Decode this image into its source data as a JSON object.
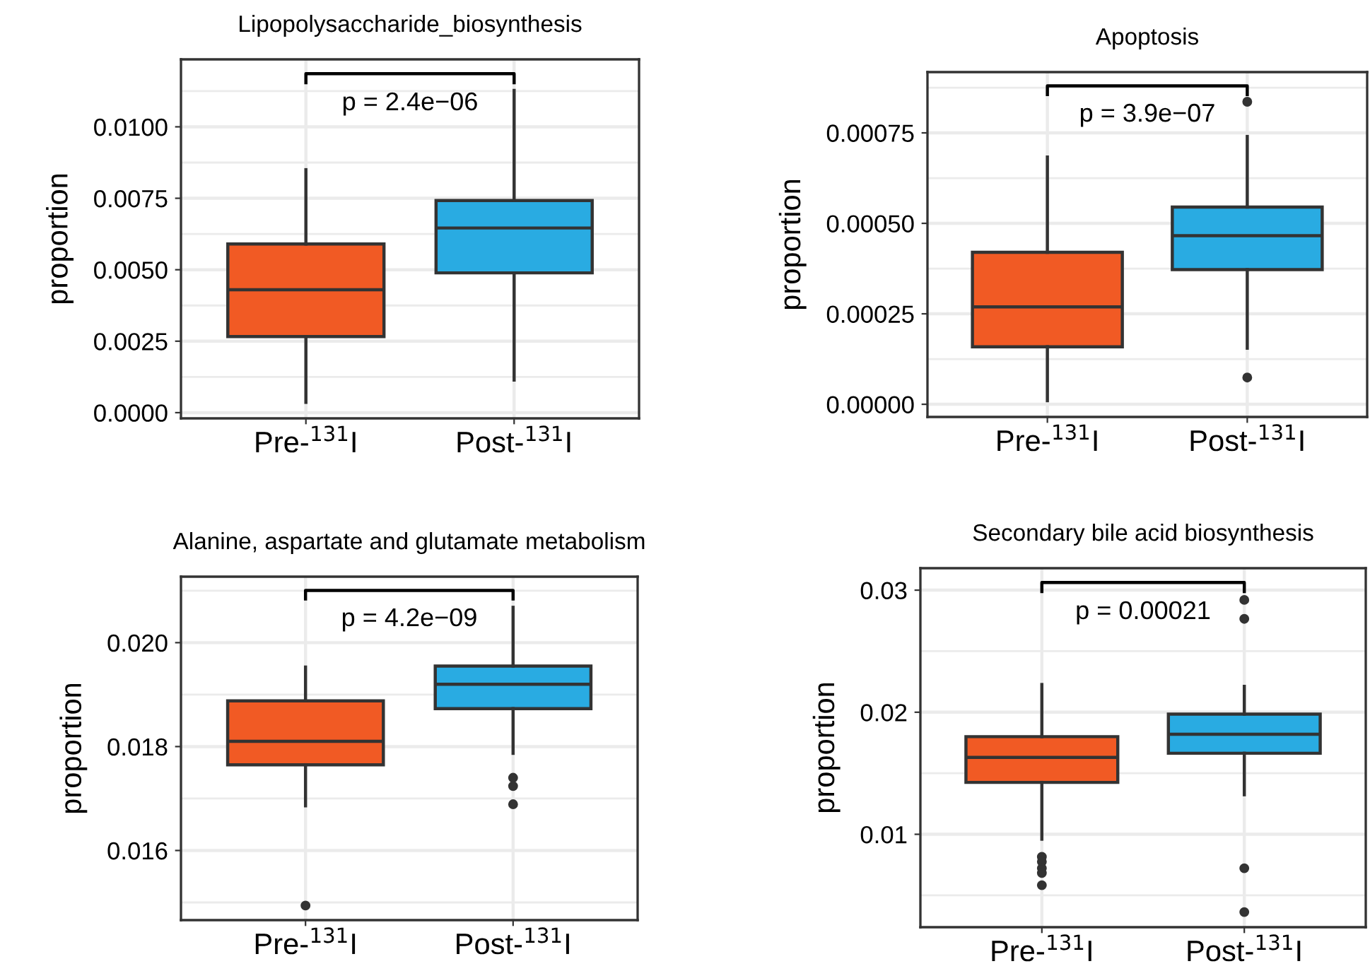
{
  "chart_data": [
    {
      "type": "box",
      "title": "Lipopolysaccharide_biosynthesis",
      "ylabel": "proportion",
      "categories": [
        "Pre-$^{131}$I",
        "Post-$^{131}$I"
      ],
      "colors": [
        "#f15a24",
        "#29abe2"
      ],
      "ylim": [
        -0.0002,
        0.01236
      ],
      "yticks": [
        {
          "value": 0,
          "label": "0.0000"
        },
        {
          "value": 0.0025,
          "label": "0.0025"
        },
        {
          "value": 0.005,
          "label": "0.0050"
        },
        {
          "value": 0.0075,
          "label": "0.0075"
        },
        {
          "value": 0.01,
          "label": "0.0100"
        }
      ],
      "grid": true,
      "annotations": [
        "p = 2.4e−06"
      ],
      "boxes": [
        {
          "low": 0.00036,
          "q1": 0.00266,
          "median": 0.0043,
          "q3": 0.0059,
          "high": 0.0085
        },
        {
          "low": 0.00114,
          "q1": 0.00489,
          "median": 0.00646,
          "q3": 0.00742,
          "high": 0.01127
        }
      ]
    },
    {
      "type": "box",
      "title": "Apoptosis",
      "ylabel": "proportion",
      "categories": [
        "Pre-$^{131}$I",
        "Post-$^{131}$I"
      ],
      "colors": [
        "#f15a24",
        "#29abe2"
      ],
      "ylim": [
        -3.5e-05,
        0.000918
      ],
      "yticks": [
        {
          "value": 0,
          "label": "0.00000"
        },
        {
          "value": 0.00025,
          "label": "0.00025"
        },
        {
          "value": 0.0005,
          "label": "0.00050"
        },
        {
          "value": 0.00075,
          "label": "0.00075"
        }
      ],
      "grid": true,
      "annotations": [
        "p = 3.9e−07"
      ],
      "boxes": [
        {
          "low": 1e-05,
          "q1": 0.000159,
          "median": 0.000269,
          "q3": 0.00042,
          "high": 0.000683
        },
        {
          "low": 0.000155,
          "q1": 0.000372,
          "median": 0.000466,
          "q3": 0.000545,
          "high": 0.00074,
          "outliers": [
            0.000836,
            7.4e-05
          ]
        }
      ]
    },
    {
      "type": "box",
      "title": "Alanine, aspartate and glutamate metabolism",
      "ylabel": "proportion",
      "categories": [
        "Pre-$^{131}$I",
        "Post-$^{131}$I"
      ],
      "colors": [
        "#f15a24",
        "#29abe2"
      ],
      "ylim": [
        0.01466,
        0.02127
      ],
      "yticks": [
        {
          "value": 0.016,
          "label": "0.016"
        },
        {
          "value": 0.018,
          "label": "0.018"
        },
        {
          "value": 0.02,
          "label": "0.020"
        }
      ],
      "grid": true,
      "annotations": [
        "p = 4.2e−09"
      ],
      "boxes": [
        {
          "low": 0.01686,
          "q1": 0.01765,
          "median": 0.0181,
          "q3": 0.01888,
          "high": 0.01953,
          "outliers": [
            0.01494
          ]
        },
        {
          "low": 0.01787,
          "q1": 0.01873,
          "median": 0.0192,
          "q3": 0.01955,
          "high": 0.02068,
          "outliers": [
            0.0174,
            0.01724,
            0.01689
          ]
        }
      ]
    },
    {
      "type": "box",
      "title": "Secondary bile acid biosynthesis",
      "ylabel": "proportion",
      "categories": [
        "Pre-$^{131}$I",
        "Post-$^{131}$I"
      ],
      "colors": [
        "#f15a24",
        "#29abe2"
      ],
      "ylim": [
        0.00239,
        0.0318
      ],
      "yticks": [
        0.01,
        0.02,
        0.03
      ],
      "grid": true,
      "annotations": [
        "p = 0.00021"
      ],
      "boxes": [
        {
          "low": 0.0096,
          "q1": 0.01425,
          "median": 0.0163,
          "q3": 0.018,
          "high": 0.02227,
          "outliers": [
            0.00815,
            0.00776,
            0.00722,
            0.00683,
            0.00583
          ]
        },
        {
          "low": 0.01324,
          "q1": 0.01664,
          "median": 0.01819,
          "q3": 0.01985,
          "high": 0.02212,
          "outliers": [
            0.0292,
            0.02765,
            0.00722,
            0.00363
          ]
        }
      ]
    }
  ]
}
